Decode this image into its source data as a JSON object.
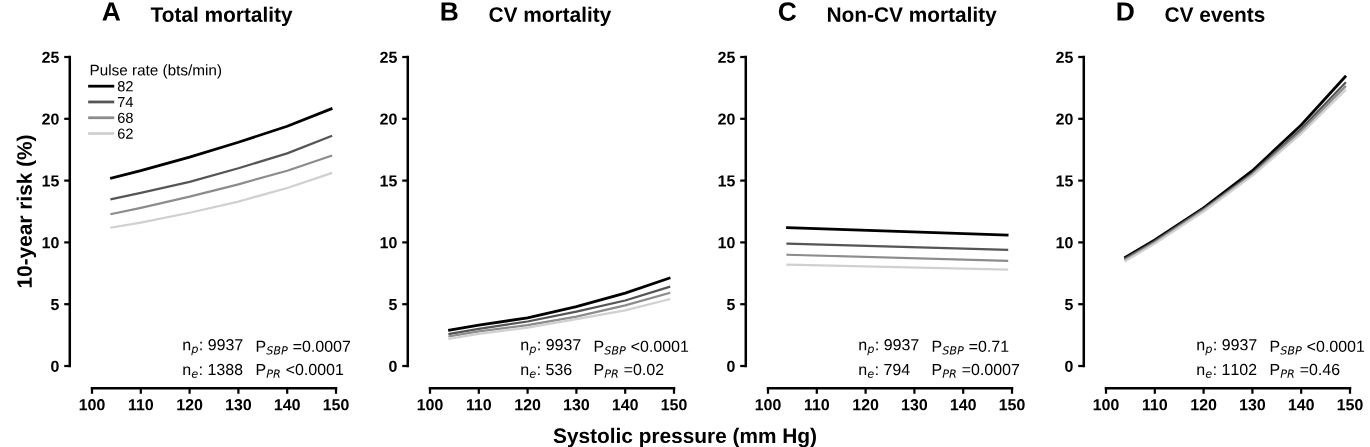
{
  "chart_data": [
    {
      "type": "line",
      "title": "A",
      "subtitle": "Total mortality",
      "ylabel": "10-year risk (%)",
      "legend": "top left",
      "legend_title": "Pulse rate (bts/min)",
      "x": [
        104,
        110,
        120,
        130,
        140,
        149
      ],
      "xlim": [
        100,
        150
      ],
      "xticks": [
        100,
        110,
        120,
        130,
        140,
        150
      ],
      "ylim": [
        0,
        25
      ],
      "yticks": [
        0,
        5,
        10,
        15,
        20,
        25
      ],
      "series": [
        {
          "name": "82",
          "color": "#000000",
          "values": [
            15.2,
            15.8,
            16.9,
            18.1,
            19.4,
            20.8
          ]
        },
        {
          "name": "74",
          "color": "#555555",
          "values": [
            13.5,
            14.0,
            14.9,
            16.0,
            17.2,
            18.6
          ]
        },
        {
          "name": "68",
          "color": "#8c8c8c",
          "values": [
            12.3,
            12.8,
            13.7,
            14.7,
            15.8,
            17.0
          ]
        },
        {
          "name": "62",
          "color": "#d0d0d0",
          "values": [
            11.2,
            11.6,
            12.4,
            13.3,
            14.4,
            15.6
          ]
        }
      ],
      "annotations": [
        "n$_{p}$: 9937",
        "P$_{SBP}$ =0.0007",
        "n$_{e}$: 1388",
        "P$_{PR}$ <0.0001"
      ]
    },
    {
      "type": "line",
      "title": "B",
      "subtitle": "CV mortality",
      "xlabel": "Systolic pressure (mm Hg)",
      "x": [
        104,
        110,
        120,
        130,
        140,
        149
      ],
      "xlim": [
        100,
        150
      ],
      "xticks": [
        100,
        110,
        120,
        130,
        140,
        150
      ],
      "ylim": [
        0,
        25
      ],
      "yticks": [
        0,
        5,
        10,
        15,
        20,
        25
      ],
      "series": [
        {
          "color": "#000000",
          "values": [
            2.9,
            3.3,
            3.9,
            4.8,
            5.9,
            7.1
          ]
        },
        {
          "color": "#555555",
          "values": [
            2.6,
            3.0,
            3.6,
            4.4,
            5.3,
            6.4
          ]
        },
        {
          "color": "#8c8c8c",
          "values": [
            2.4,
            2.8,
            3.3,
            4.0,
            4.9,
            5.9
          ]
        },
        {
          "color": "#d0d0d0",
          "values": [
            2.2,
            2.6,
            3.1,
            3.8,
            4.5,
            5.4
          ]
        }
      ],
      "annotations": [
        "n$_{p}$: 9937",
        "P$_{SBP}$ <0.0001",
        "n$_{e}$: 536",
        "P$_{PR}$ =0.02"
      ]
    },
    {
      "type": "line",
      "title": "C",
      "subtitle": "Non-CV mortality",
      "x": [
        104,
        149
      ],
      "xlim": [
        100,
        150
      ],
      "xticks": [
        100,
        110,
        120,
        130,
        140,
        150
      ],
      "ylim": [
        0,
        25
      ],
      "yticks": [
        0,
        5,
        10,
        15,
        20,
        25
      ],
      "series": [
        {
          "color": "#000000",
          "values": [
            11.2,
            10.6
          ]
        },
        {
          "color": "#555555",
          "values": [
            9.9,
            9.4
          ]
        },
        {
          "color": "#8c8c8c",
          "values": [
            9.0,
            8.5
          ]
        },
        {
          "color": "#d0d0d0",
          "values": [
            8.2,
            7.8
          ]
        }
      ],
      "annotations": [
        "n$_{p}$: 9937",
        "P$_{SBP}$ =0.71",
        "n$_{e}$: 794",
        "P$_{PR}$ =0.0007"
      ]
    },
    {
      "type": "line",
      "title": "D",
      "subtitle": "CV events",
      "x": [
        104,
        110,
        120,
        130,
        140,
        149
      ],
      "xlim": [
        100,
        150
      ],
      "xticks": [
        100,
        110,
        120,
        130,
        140,
        150
      ],
      "ylim": [
        0,
        25
      ],
      "yticks": [
        0,
        5,
        10,
        15,
        20,
        25
      ],
      "series": [
        {
          "color": "#000000",
          "values": [
            8.8,
            10.2,
            12.8,
            15.8,
            19.5,
            23.4
          ]
        },
        {
          "color": "#555555",
          "values": [
            8.7,
            10.1,
            12.7,
            15.6,
            19.2,
            22.9
          ]
        },
        {
          "color": "#8c8c8c",
          "values": [
            8.6,
            10.0,
            12.6,
            15.5,
            19.0,
            22.6
          ]
        },
        {
          "color": "#d0d0d0",
          "values": [
            8.5,
            9.9,
            12.5,
            15.4,
            18.8,
            22.3
          ]
        }
      ],
      "annotations": [
        "n$_{p}$: 9937",
        "P$_{SBP}$ <0.0001",
        "n$_{e}$: 1102",
        "P$_{PR}$ =0.46"
      ]
    }
  ]
}
